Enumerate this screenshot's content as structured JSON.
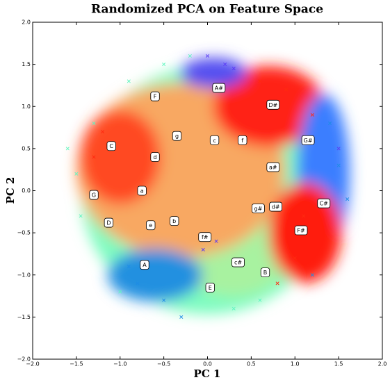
{
  "chart_data": {
    "type": "scatter",
    "title": "Randomized PCA on Feature Space",
    "x_label": "PC 1",
    "y_label": "PC 2",
    "xlim": [
      -2,
      2
    ],
    "ylim": [
      -2,
      2
    ],
    "xticks": [
      {
        "value": -2,
        "label": "−2.0"
      },
      {
        "value": -1.5,
        "label": "−1.5"
      },
      {
        "value": -1,
        "label": "−1.0"
      },
      {
        "value": -0.5,
        "label": "−0.5"
      },
      {
        "value": 0,
        "label": "0.0"
      },
      {
        "value": 0.5,
        "label": "0.5"
      },
      {
        "value": 1,
        "label": "1.0"
      },
      {
        "value": 1.5,
        "label": "1.5"
      },
      {
        "value": 2,
        "label": "2.0"
      }
    ],
    "yticks": [
      {
        "value": -2,
        "label": "−2.0"
      },
      {
        "value": -1.5,
        "label": "−1.5"
      },
      {
        "value": -1,
        "label": "−1.0"
      },
      {
        "value": -0.5,
        "label": "−0.5"
      },
      {
        "value": 0,
        "label": "0.0"
      },
      {
        "value": 0.5,
        "label": "0.5"
      },
      {
        "value": 1,
        "label": "1.0"
      },
      {
        "value": 1.5,
        "label": "1.5"
      },
      {
        "value": 2,
        "label": "2.0"
      }
    ],
    "series": [
      {
        "color": "#60f5c0",
        "x": [
          -1.6,
          -1.45,
          -1.3,
          -0.9,
          -0.2,
          0.3,
          -1.0,
          -0.5,
          0.6,
          -1.5
        ],
        "y": [
          0.5,
          -0.3,
          0.8,
          1.3,
          1.6,
          -1.4,
          -1.2,
          1.5,
          -1.3,
          0.2
        ]
      },
      {
        "color": "#1e8ce6",
        "x": [
          -0.8,
          -0.5,
          -0.3,
          -0.9,
          1.5,
          1.6,
          1.4,
          1.2
        ],
        "y": [
          -1.1,
          -1.3,
          -1.5,
          -0.9,
          0.3,
          -0.1,
          0.8,
          -1.0
        ]
      },
      {
        "color": "#5a3cf5",
        "x": [
          0.0,
          0.2,
          -0.05,
          0.1,
          1.5,
          0.3
        ],
        "y": [
          1.6,
          1.5,
          -0.7,
          -0.6,
          0.5,
          1.45
        ]
      },
      {
        "color": "#ff2a10",
        "x": [
          -1.3,
          -1.2,
          0.6,
          0.9,
          1.1,
          1.0,
          0.8,
          1.2
        ],
        "y": [
          0.4,
          0.7,
          1.3,
          1.2,
          -0.3,
          -0.8,
          -1.1,
          0.9
        ]
      }
    ],
    "annotations": [
      {
        "text": "A#",
        "x": 0.13,
        "y": 1.22
      },
      {
        "text": "D#",
        "x": 0.75,
        "y": 1.02
      },
      {
        "text": "F",
        "x": -0.6,
        "y": 1.12
      },
      {
        "text": "g",
        "x": -0.35,
        "y": 0.65
      },
      {
        "text": "c",
        "x": 0.08,
        "y": 0.6
      },
      {
        "text": "f",
        "x": 0.4,
        "y": 0.6
      },
      {
        "text": "G#",
        "x": 1.15,
        "y": 0.6
      },
      {
        "text": "C",
        "x": -1.1,
        "y": 0.53
      },
      {
        "text": "d",
        "x": -0.6,
        "y": 0.4
      },
      {
        "text": "a#",
        "x": 0.75,
        "y": 0.28
      },
      {
        "text": "a",
        "x": -0.75,
        "y": 0.0
      },
      {
        "text": "G",
        "x": -1.3,
        "y": -0.05
      },
      {
        "text": "g#",
        "x": 0.58,
        "y": -0.21
      },
      {
        "text": "d#",
        "x": 0.78,
        "y": -0.19
      },
      {
        "text": "C#",
        "x": 1.33,
        "y": -0.15
      },
      {
        "text": "D",
        "x": -1.13,
        "y": -0.38
      },
      {
        "text": "e",
        "x": -0.65,
        "y": -0.41
      },
      {
        "text": "b",
        "x": -0.38,
        "y": -0.36
      },
      {
        "text": "F#",
        "x": 1.07,
        "y": -0.47
      },
      {
        "text": "f#",
        "x": -0.03,
        "y": -0.55
      },
      {
        "text": "c#",
        "x": 0.35,
        "y": -0.85
      },
      {
        "text": "A",
        "x": -0.72,
        "y": -0.88
      },
      {
        "text": "B",
        "x": 0.66,
        "y": -0.97
      },
      {
        "text": "E",
        "x": 0.03,
        "y": -1.15
      }
    ]
  }
}
